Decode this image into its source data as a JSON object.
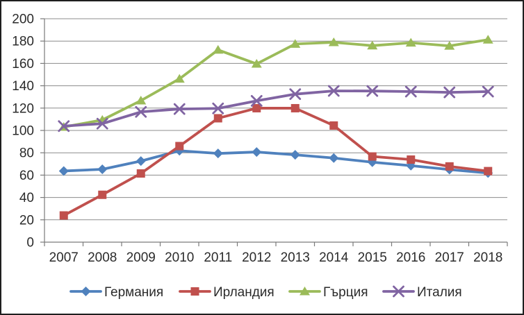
{
  "chart_data": {
    "type": "line",
    "title": "",
    "xlabel": "",
    "ylabel": "",
    "categories": [
      "2007",
      "2008",
      "2009",
      "2010",
      "2011",
      "2012",
      "2013",
      "2014",
      "2015",
      "2016",
      "2017",
      "2018"
    ],
    "yticks": [
      "0",
      "20",
      "40",
      "60",
      "80",
      "100",
      "120",
      "140",
      "160",
      "180",
      "200"
    ],
    "ylim": [
      0,
      200
    ],
    "ytick_step": 20,
    "grid": "horizontal",
    "legend_position": "bottom",
    "series": [
      {
        "name": "Германия",
        "color": "#4F81BD",
        "marker": "diamond",
        "values": [
          63.7,
          65.2,
          72.6,
          81.8,
          79.4,
          80.7,
          78.2,
          75.3,
          71.6,
          68.5,
          65.0,
          61.9
        ]
      },
      {
        "name": "Ирландия",
        "color": "#C0504D",
        "marker": "square",
        "values": [
          23.9,
          42.4,
          61.5,
          86.0,
          110.9,
          119.9,
          119.9,
          104.4,
          76.7,
          73.9,
          67.8,
          63.6
        ]
      },
      {
        "name": "Гърция",
        "color": "#9BBB59",
        "marker": "triangle",
        "values": [
          103.1,
          109.4,
          126.7,
          146.2,
          172.1,
          159.6,
          177.4,
          178.9,
          175.9,
          178.5,
          175.7,
          181.2
        ]
      },
      {
        "name": "Италия",
        "color": "#8064A2",
        "marker": "x",
        "values": [
          103.9,
          106.1,
          116.6,
          119.2,
          119.7,
          126.5,
          132.5,
          135.4,
          135.3,
          134.8,
          134.1,
          134.8
        ]
      }
    ],
    "colors": {
      "gridline": "#8C8C8C",
      "axis": "#7A7A7A",
      "text": "#2B2B2B",
      "background": "#FFFFFF",
      "frame_border": "#1F1F1F"
    }
  }
}
